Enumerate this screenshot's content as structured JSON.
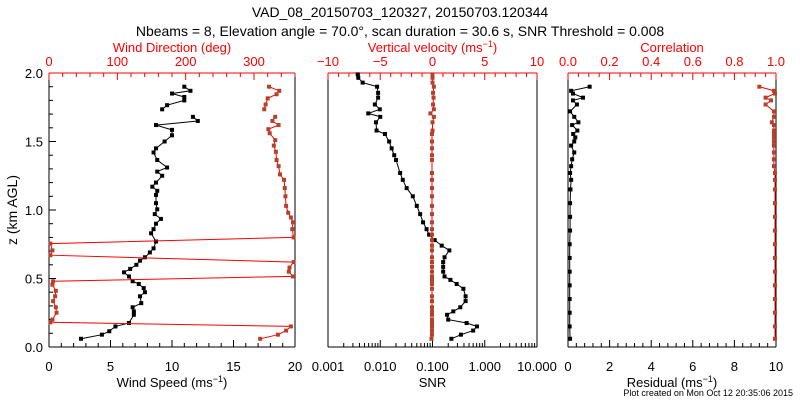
{
  "title_line1": "VAD_08_20150703_120327, 20150703.120344",
  "title_line2": "Nbeams = 8, Elevation angle = 70.0°, scan duration = 30.6 s, SNR Threshold = 0.008",
  "footer": "Plot created on Mon Oct 12 20:35:06 2015",
  "colors": {
    "axis_red": "#ff0000",
    "data_red": "#b5412b",
    "black": "#000000"
  },
  "chart_data": [
    {
      "type": "line",
      "panel": "wind",
      "ylabel": "z (km AGL)",
      "ylim": [
        0,
        2
      ],
      "yticks": [
        "0.0",
        "0.5",
        "1.0",
        "1.5",
        "2.0"
      ],
      "bottom_axis": {
        "label": "Wind Speed (ms",
        "label_sup": "−1",
        "label_end": ")",
        "range": [
          0,
          20
        ],
        "ticks": [
          "0",
          "5",
          "10",
          "15",
          "20"
        ]
      },
      "top_axis": {
        "label": "Wind Direction (deg)",
        "range": [
          0,
          360
        ],
        "ticks": [
          "0",
          "100",
          "200",
          "300"
        ]
      },
      "series": [
        {
          "name": "Wind Speed",
          "axis": "bottom",
          "color": "#000000",
          "z": [
            0.06,
            0.09,
            0.115,
            0.15,
            0.175,
            0.235,
            0.26,
            0.29,
            0.32,
            0.37,
            0.4,
            0.43,
            0.46,
            0.48,
            0.515,
            0.545,
            0.57,
            0.6,
            0.63,
            0.655,
            0.69,
            0.72,
            0.77,
            0.83,
            0.86,
            0.9,
            0.935,
            0.97,
            1.005,
            1.05,
            1.11,
            1.14,
            1.17,
            1.2,
            1.25,
            1.28,
            1.31,
            1.365,
            1.42,
            1.45,
            1.5,
            1.545,
            1.585,
            1.62,
            1.65,
            1.68,
            1.71,
            1.735,
            1.765,
            1.8,
            1.825,
            1.85,
            1.87,
            1.9
          ],
          "values": [
            2.6,
            4.3,
            4.9,
            5.4,
            6.5,
            6.9,
            6.9,
            6.8,
            7.5,
            7.4,
            7.8,
            7.7,
            7.3,
            6.8,
            6.5,
            6.1,
            6.6,
            7.1,
            7.4,
            7.8,
            8.2,
            8.5,
            8.7,
            8.3,
            8.5,
            8.7,
            9.1,
            8.6,
            8.8,
            8.7,
            8.7,
            8.8,
            8.4,
            8.7,
            9.2,
            8.8,
            9.6,
            8.8,
            8.5,
            8.7,
            9.4,
            10.0,
            10.0,
            8.7,
            12.1,
            11.7,
            null,
            9.2,
            9.6,
            11.0,
            11.0,
            10.0,
            11.5,
            11.0
          ]
        },
        {
          "name": "Wind Direction",
          "axis": "top",
          "color": "#b5412b",
          "z": [
            0.06,
            0.09,
            0.12,
            0.15,
            0.18,
            0.2,
            0.25,
            0.29,
            0.335,
            0.37,
            0.41,
            0.455,
            0.48,
            0.515,
            0.55,
            0.58,
            0.62,
            0.67,
            0.705,
            0.755,
            0.8,
            0.86,
            0.91,
            0.945,
            0.98,
            1.03,
            1.1,
            1.16,
            1.22,
            1.26,
            1.32,
            1.365,
            1.425,
            1.47,
            1.51,
            1.56,
            1.59,
            1.62,
            1.65,
            1.68,
            1.71,
            1.735,
            1.77,
            1.815,
            1.845,
            1.87,
            1.9
          ],
          "values": [
            309,
            335,
            347,
            354,
            2,
            5,
            11,
            10,
            6,
            9,
            10,
            5,
            6,
            357,
            351,
            352,
            358,
            2,
            5,
            2,
            358,
            356,
            357,
            354,
            350,
            347,
            346,
            345,
            344,
            338,
            336,
            333,
            332,
            329,
            331,
            323,
            321,
            336,
            327,
            331,
            null,
            315,
            317,
            320,
            333,
            337,
            322
          ]
        }
      ]
    },
    {
      "type": "line",
      "panel": "snr",
      "ylim": [
        0,
        2
      ],
      "bottom_axis": {
        "label": "SNR",
        "scale": "log",
        "range": [
          0.001,
          10
        ],
        "ticks": [
          "0.001",
          "0.010",
          "0.100",
          "1.000",
          "10.000"
        ]
      },
      "top_axis": {
        "label": "Vertical velocity (ms",
        "label_sup": "−1",
        "label_end": ")",
        "range": [
          -10,
          10
        ],
        "ticks": [
          "−10",
          "−5",
          "0",
          "5",
          "10"
        ]
      },
      "z": [
        0.06,
        0.09,
        0.12,
        0.15,
        0.175,
        0.2,
        0.235,
        0.26,
        0.29,
        0.335,
        0.37,
        0.425,
        0.46,
        0.49,
        0.515,
        0.55,
        0.585,
        0.62,
        0.655,
        0.705,
        0.74,
        0.78,
        0.82,
        0.86,
        0.91,
        0.97,
        1.03,
        1.1,
        1.16,
        1.22,
        1.27,
        1.365,
        1.4,
        1.45,
        1.5,
        1.555,
        1.58,
        1.64,
        1.68,
        1.705,
        1.735,
        1.77,
        1.82,
        1.855,
        1.9,
        1.93,
        1.965,
        1.99
      ],
      "series": [
        {
          "name": "SNR",
          "axis": "bottom",
          "color": "#000000",
          "values": [
            0.23,
            0.35,
            0.6,
            0.71,
            0.45,
            0.2,
            0.19,
            0.25,
            0.34,
            0.43,
            0.43,
            0.39,
            0.29,
            0.22,
            0.17,
            0.16,
            0.16,
            0.16,
            0.17,
            0.21,
            0.15,
            0.11,
            0.086,
            0.077,
            0.066,
            0.058,
            0.05,
            0.042,
            0.032,
            0.027,
            0.024,
            0.02,
            0.0185,
            0.0165,
            0.0148,
            0.0123,
            0.0085,
            0.0083,
            0.01,
            0.0059,
            0.0098,
            0.0079,
            0.0091,
            0.0091,
            0.0087,
            0.0046,
            0.0038,
            0.0037
          ]
        },
        {
          "name": "Vertical velocity",
          "axis": "top",
          "color": "#b5412b",
          "values": [
            -0.1,
            -0.05,
            -0.05,
            -0.05,
            -0.05,
            -0.05,
            -0.05,
            -0.05,
            -0.05,
            -0.05,
            -0.05,
            -0.05,
            -0.05,
            -0.05,
            -0.05,
            -0.05,
            -0.05,
            -0.05,
            -0.05,
            -0.05,
            -0.05,
            -0.05,
            -0.05,
            -0.05,
            -0.05,
            -0.05,
            -0.05,
            -0.05,
            -0.05,
            -0.05,
            -0.05,
            -0.05,
            -0.05,
            -0.05,
            -0.05,
            -0.05,
            0.0,
            0.0,
            0.13,
            -0.2,
            0.13,
            0.05,
            0.1,
            0.05,
            0.13,
            0.0,
            0.0,
            0.0
          ]
        }
      ]
    },
    {
      "type": "line",
      "panel": "residual",
      "ylim": [
        0,
        2
      ],
      "bottom_axis": {
        "label": "Residual (ms",
        "label_sup": "−1",
        "label_end": ")",
        "range": [
          0,
          10
        ],
        "ticks": [
          "0",
          "2",
          "4",
          "6",
          "8",
          "10"
        ]
      },
      "top_axis": {
        "label": "Correlation",
        "range": [
          0,
          1
        ],
        "ticks": [
          "0.0",
          "0.2",
          "0.4",
          "0.6",
          "0.8",
          "1.0"
        ]
      },
      "z": [
        0.06,
        0.15,
        0.25,
        0.35,
        0.45,
        0.55,
        0.65,
        0.75,
        0.85,
        0.95,
        1.05,
        1.15,
        1.22,
        1.27,
        1.32,
        1.37,
        1.42,
        1.47,
        1.5,
        1.53,
        1.555,
        1.58,
        1.62,
        1.64,
        1.68,
        1.72,
        1.77,
        1.8,
        1.82,
        1.85,
        1.87,
        1.9
      ],
      "series": [
        {
          "name": "Residual",
          "axis": "bottom",
          "color": "#000000",
          "values": [
            0.1,
            0.08,
            0.08,
            0.08,
            0.08,
            0.08,
            0.08,
            0.08,
            0.1,
            0.1,
            0.1,
            0.12,
            0.15,
            0.1,
            0.15,
            0.2,
            0.3,
            0.15,
            0.3,
            0.35,
            0.25,
            0.45,
            0.2,
            0.5,
            0.3,
            0.1,
            0.43,
            0.24,
            0.72,
            0.24,
            0.15,
            1.04
          ]
        },
        {
          "name": "Correlation",
          "axis": "top",
          "color": "#b5412b",
          "values": [
            0.995,
            0.995,
            0.995,
            0.995,
            0.995,
            0.995,
            0.995,
            0.995,
            0.995,
            0.995,
            0.995,
            0.995,
            0.995,
            0.995,
            0.99,
            0.99,
            0.99,
            0.99,
            0.99,
            0.99,
            0.99,
            0.99,
            0.99,
            0.98,
            0.99,
            0.99,
            0.95,
            0.976,
            0.95,
            0.995,
            0.99,
            0.92
          ]
        }
      ]
    }
  ]
}
